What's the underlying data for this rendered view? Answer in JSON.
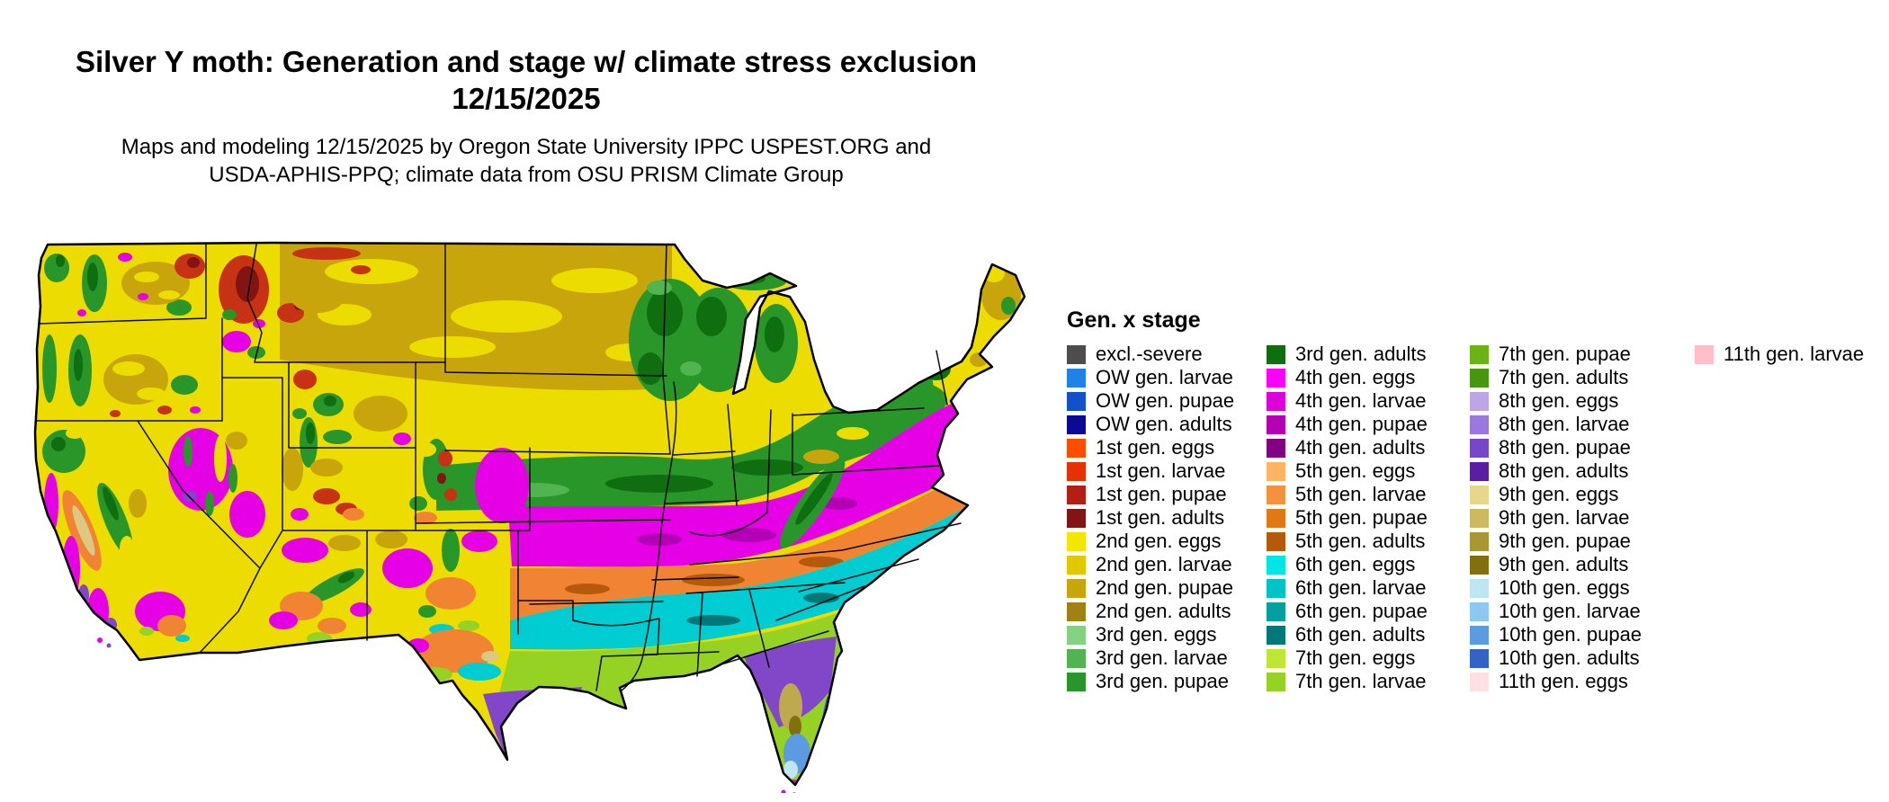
{
  "header": {
    "title": "Silver Y moth: Generation and stage w/ climate stress exclusion",
    "date": "12/15/2025",
    "credit_line1": "Maps and modeling 12/15/2025 by Oregon State University IPPC USPEST.ORG and",
    "credit_line2": "USDA-APHIS-PPQ; climate data from OSU PRISM Climate Group"
  },
  "legend": {
    "title": "Gen. x stage",
    "columns": [
      {
        "items": [
          {
            "label": "excl.-severe",
            "color": "#4D4D4D"
          },
          {
            "label": "OW gen. larvae",
            "color": "#1E82E6"
          },
          {
            "label": "OW gen. pupae",
            "color": "#1152CC"
          },
          {
            "label": "OW gen. adults",
            "color": "#0A0A96"
          },
          {
            "label": "1st gen. eggs",
            "color": "#FF4D00"
          },
          {
            "label": "1st gen. larvae",
            "color": "#E63200"
          },
          {
            "label": "1st gen. pupae",
            "color": "#B41E14"
          },
          {
            "label": "1st gen. adults",
            "color": "#821414"
          },
          {
            "label": "2nd gen. eggs",
            "color": "#F5E600"
          },
          {
            "label": "2nd gen. larvae",
            "color": "#E1C800"
          },
          {
            "label": "2nd gen. pupae",
            "color": "#C8A50A"
          },
          {
            "label": "2nd gen. adults",
            "color": "#A08214"
          },
          {
            "label": "3rd gen. eggs",
            "color": "#82D282"
          },
          {
            "label": "3rd gen. larvae",
            "color": "#50B450"
          },
          {
            "label": "3rd gen. pupae",
            "color": "#289628"
          }
        ]
      },
      {
        "items": [
          {
            "label": "3rd gen. adults",
            "color": "#0F6E0F"
          },
          {
            "label": "4th gen. eggs",
            "color": "#FA00FA"
          },
          {
            "label": "4th gen. larvae",
            "color": "#DC00DC"
          },
          {
            "label": "4th gen. pupae",
            "color": "#B400B4"
          },
          {
            "label": "4th gen. adults",
            "color": "#820082"
          },
          {
            "label": "5th gen. eggs",
            "color": "#FFB464"
          },
          {
            "label": "5th gen. larvae",
            "color": "#F5913C"
          },
          {
            "label": "5th gen. pupae",
            "color": "#E17814"
          },
          {
            "label": "5th gen. adults",
            "color": "#B45A0A"
          },
          {
            "label": "6th gen. eggs",
            "color": "#00E6E6"
          },
          {
            "label": "6th gen. larvae",
            "color": "#00C3C8"
          },
          {
            "label": "6th gen. pupae",
            "color": "#00A0A0"
          },
          {
            "label": "6th gen. adults",
            "color": "#007878"
          },
          {
            "label": "7th gen. eggs",
            "color": "#BEE632"
          },
          {
            "label": "7th gen. larvae",
            "color": "#96D223"
          }
        ]
      },
      {
        "items": [
          {
            "label": "7th gen. pupae",
            "color": "#69B414"
          },
          {
            "label": "7th gen. adults",
            "color": "#46960F"
          },
          {
            "label": "8th gen. eggs",
            "color": "#BEA5E6"
          },
          {
            "label": "8th gen. larvae",
            "color": "#9B78DC"
          },
          {
            "label": "8th gen. pupae",
            "color": "#7846C8"
          },
          {
            "label": "8th gen. adults",
            "color": "#5A1EA0"
          },
          {
            "label": "9th gen. eggs",
            "color": "#E6D78C"
          },
          {
            "label": "9th gen. larvae",
            "color": "#CDB95F"
          },
          {
            "label": "9th gen. pupae",
            "color": "#AA9632"
          },
          {
            "label": "9th gen. adults",
            "color": "#82700F"
          },
          {
            "label": "10th gen. eggs",
            "color": "#BEE6F0"
          },
          {
            "label": "10th gen. larvae",
            "color": "#8CC8F0"
          },
          {
            "label": "10th gen. pupae",
            "color": "#5A9BE1"
          },
          {
            "label": "10th gen. adults",
            "color": "#3264C8"
          },
          {
            "label": "11th gen. eggs",
            "color": "#FFE1E1"
          }
        ]
      },
      {
        "items": [
          {
            "label": "11th gen. larvae",
            "color": "#FFBEC8"
          }
        ]
      }
    ]
  }
}
